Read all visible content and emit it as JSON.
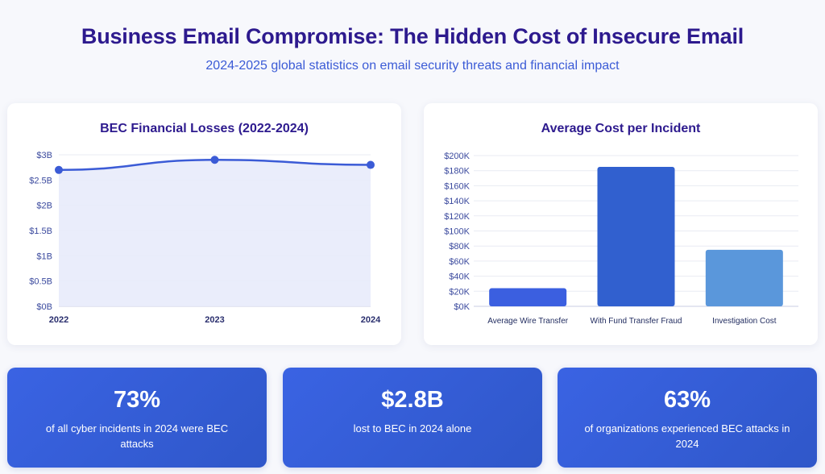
{
  "header": {
    "title": "Business Email Compromise: The Hidden Cost of Insecure Email",
    "subtitle": "2024-2025 global statistics on email security threats and financial impact"
  },
  "chart_data": [
    {
      "type": "area",
      "title": "BEC Financial Losses (2022-2024)",
      "x": [
        "2022",
        "2023",
        "2024"
      ],
      "values": [
        2.7,
        2.9,
        2.8
      ],
      "unit": "billion USD",
      "ylim": [
        0,
        3
      ],
      "y_ticks": [
        0,
        0.5,
        1,
        1.5,
        2,
        2.5,
        3
      ],
      "y_tick_labels": [
        "$0B",
        "$0.5B",
        "$1B",
        "$1.5B",
        "$2B",
        "$2.5B",
        "$3B"
      ],
      "xlabel": "",
      "ylabel": "",
      "grid": true,
      "colors": {
        "line": "#3b5bd6",
        "fill": "#e8ebfb",
        "point": "#3b5bd6"
      }
    },
    {
      "type": "bar",
      "title": "Average Cost per Incident",
      "categories": [
        "Average Wire Transfer",
        "With Fund Transfer Fraud",
        "Investigation Cost"
      ],
      "values": [
        24000,
        185000,
        75000
      ],
      "ylim": [
        0,
        200000
      ],
      "y_ticks": [
        0,
        20000,
        40000,
        60000,
        80000,
        100000,
        120000,
        140000,
        160000,
        180000,
        200000
      ],
      "y_tick_labels": [
        "$0K",
        "$20K",
        "$40K",
        "$60K",
        "$80K",
        "$100K",
        "$120K",
        "$140K",
        "$160K",
        "$180K",
        "$200K"
      ],
      "xlabel": "",
      "ylabel": "",
      "grid": true,
      "colors": [
        "#3b5fe0",
        "#3160cf",
        "#5a97db"
      ]
    }
  ],
  "stats": [
    {
      "value": "73%",
      "description": "of all cyber incidents in 2024 were BEC attacks"
    },
    {
      "value": "$2.8B",
      "description": "lost to BEC in 2024 alone"
    },
    {
      "value": "63%",
      "description": "of organizations experienced BEC attacks in 2024"
    }
  ]
}
